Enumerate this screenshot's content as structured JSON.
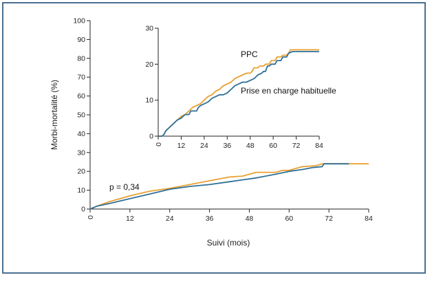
{
  "chart_data": [
    {
      "id": "main",
      "type": "line",
      "xlabel": "Suivi (mois)",
      "ylabel": "Morbi-mortalité (%)",
      "xlim": [
        0,
        84
      ],
      "ylim": [
        0,
        100
      ],
      "xticks": [
        "0",
        "12",
        "24",
        "36",
        "48",
        "60",
        "72",
        "84"
      ],
      "yticks": [
        "0",
        "10",
        "20",
        "30",
        "40",
        "50",
        "60",
        "70",
        "80",
        "90",
        "100"
      ],
      "annotation": "p = 0,34",
      "series": [
        {
          "color": "#e8a030",
          "points": [
            [
              0,
              0
            ],
            [
              2,
              1.5
            ],
            [
              6,
              4
            ],
            [
              12,
              7
            ],
            [
              18,
              9.5
            ],
            [
              24,
              11
            ],
            [
              30,
              13
            ],
            [
              36,
              15
            ],
            [
              42,
              17
            ],
            [
              46,
              17.5
            ],
            [
              50,
              19.5
            ],
            [
              56,
              19.5
            ],
            [
              58,
              20.5
            ],
            [
              60,
              20.5
            ],
            [
              64,
              22.5
            ],
            [
              68,
              23
            ],
            [
              70,
              24
            ],
            [
              72,
              24
            ],
            [
              80,
              24
            ],
            [
              84,
              24
            ]
          ]
        },
        {
          "color": "#2f6f96",
          "points": [
            [
              0,
              0
            ],
            [
              2,
              1.5
            ],
            [
              6,
              3
            ],
            [
              12,
              5.5
            ],
            [
              18,
              8
            ],
            [
              24,
              10.5
            ],
            [
              30,
              12
            ],
            [
              36,
              13
            ],
            [
              42,
              14.5
            ],
            [
              46,
              15.5
            ],
            [
              50,
              16.5
            ],
            [
              56,
              18.5
            ],
            [
              60,
              20
            ],
            [
              64,
              21
            ],
            [
              67,
              22
            ],
            [
              70,
              22.5
            ],
            [
              70.5,
              24
            ],
            [
              78,
              24
            ]
          ]
        }
      ]
    },
    {
      "id": "inset",
      "type": "line",
      "xlim": [
        0,
        84
      ],
      "ylim": [
        0,
        30
      ],
      "xticks": [
        "0",
        "12",
        "24",
        "36",
        "48",
        "60",
        "72",
        "84"
      ],
      "yticks": [
        "0",
        "10",
        "20",
        "30"
      ],
      "series": [
        {
          "name": "PPC",
          "color": "#e8a030",
          "points": [
            [
              0,
              0
            ],
            [
              2,
              0
            ],
            [
              3,
              0.5
            ],
            [
              4,
              1.5
            ],
            [
              6,
              2.5
            ],
            [
              8,
              3.5
            ],
            [
              10,
              4.5
            ],
            [
              12,
              5.5
            ],
            [
              14,
              6
            ],
            [
              16,
              7
            ],
            [
              18,
              8
            ],
            [
              20,
              8.5
            ],
            [
              22,
              9
            ],
            [
              24,
              10
            ],
            [
              26,
              11
            ],
            [
              28,
              11.5
            ],
            [
              30,
              12.5
            ],
            [
              32,
              13
            ],
            [
              34,
              14
            ],
            [
              36,
              14.5
            ],
            [
              38,
              15
            ],
            [
              40,
              16
            ],
            [
              42,
              16.5
            ],
            [
              44,
              17
            ],
            [
              46,
              17.5
            ],
            [
              48,
              17.5
            ],
            [
              49,
              18
            ],
            [
              50,
              19
            ],
            [
              52,
              19
            ],
            [
              53,
              19.5
            ],
            [
              55,
              19.5
            ],
            [
              56,
              20
            ],
            [
              58,
              20
            ],
            [
              59,
              21
            ],
            [
              61,
              21
            ],
            [
              62,
              22
            ],
            [
              64,
              22
            ],
            [
              65,
              22.5
            ],
            [
              67,
              22.5
            ],
            [
              68,
              23
            ],
            [
              69,
              24
            ],
            [
              72,
              24
            ],
            [
              84,
              24
            ]
          ]
        },
        {
          "name": "Prise en charge habituelle",
          "color": "#2f6f96",
          "points": [
            [
              0,
              0
            ],
            [
              2,
              0
            ],
            [
              3,
              0.5
            ],
            [
              4,
              1.5
            ],
            [
              6,
              2.5
            ],
            [
              8,
              3.5
            ],
            [
              10,
              4.5
            ],
            [
              12,
              5
            ],
            [
              14,
              6
            ],
            [
              16,
              6
            ],
            [
              17,
              7
            ],
            [
              20,
              7
            ],
            [
              21,
              8
            ],
            [
              22,
              8.5
            ],
            [
              24,
              9
            ],
            [
              26,
              9.5
            ],
            [
              28,
              10.5
            ],
            [
              30,
              11
            ],
            [
              32,
              11.5
            ],
            [
              34,
              11.5
            ],
            [
              36,
              12
            ],
            [
              38,
              13
            ],
            [
              40,
              14
            ],
            [
              42,
              14.5
            ],
            [
              44,
              15
            ],
            [
              46,
              15
            ],
            [
              48,
              15.5
            ],
            [
              50,
              16
            ],
            [
              52,
              17
            ],
            [
              54,
              17.5
            ],
            [
              55,
              18
            ],
            [
              56,
              18
            ],
            [
              57,
              19.5
            ],
            [
              58,
              19.5
            ],
            [
              59,
              20
            ],
            [
              61,
              20
            ],
            [
              62,
              21
            ],
            [
              64,
              21
            ],
            [
              65,
              22
            ],
            [
              67,
              22
            ],
            [
              68,
              23
            ],
            [
              70,
              23.5
            ],
            [
              72,
              23.5
            ],
            [
              84,
              23.5
            ]
          ]
        }
      ]
    }
  ]
}
